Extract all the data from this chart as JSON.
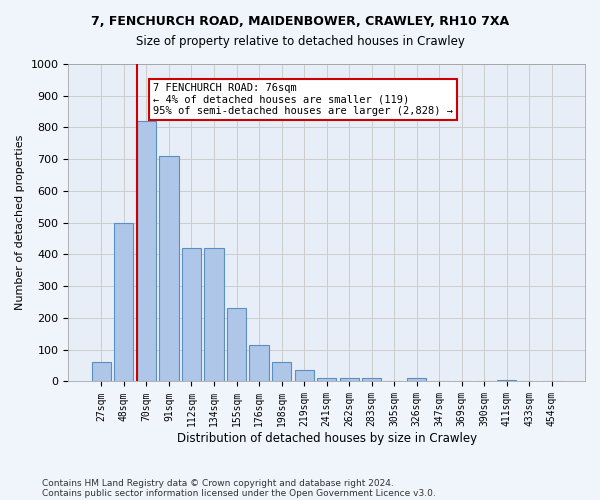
{
  "title1": "7, FENCHURCH ROAD, MAIDENBOWER, CRAWLEY, RH10 7XA",
  "title2": "Size of property relative to detached houses in Crawley",
  "xlabel": "Distribution of detached houses by size in Crawley",
  "ylabel": "Number of detached properties",
  "categories": [
    "27sqm",
    "48sqm",
    "70sqm",
    "91sqm",
    "112sqm",
    "134sqm",
    "155sqm",
    "176sqm",
    "198sqm",
    "219sqm",
    "241sqm",
    "262sqm",
    "283sqm",
    "305sqm",
    "326sqm",
    "347sqm",
    "369sqm",
    "390sqm",
    "411sqm",
    "433sqm",
    "454sqm"
  ],
  "values": [
    60,
    500,
    820,
    710,
    420,
    420,
    230,
    115,
    60,
    35,
    12,
    10,
    10,
    0,
    10,
    0,
    0,
    0,
    5,
    0,
    0
  ],
  "bar_color": "#aec6e8",
  "bar_edge_color": "#5a8fc2",
  "vline_x": 2,
  "vline_color": "#cc0000",
  "annotation_text": "7 FENCHURCH ROAD: 76sqm\n← 4% of detached houses are smaller (119)\n95% of semi-detached houses are larger (2,828) →",
  "annotation_box_color": "#ffffff",
  "annotation_box_edge": "#cc0000",
  "ylim": [
    0,
    1000
  ],
  "yticks": [
    0,
    100,
    200,
    300,
    400,
    500,
    600,
    700,
    800,
    900,
    1000
  ],
  "grid_color": "#cccccc",
  "bg_color": "#e8eef8",
  "footer1": "Contains HM Land Registry data © Crown copyright and database right 2024.",
  "footer2": "Contains public sector information licensed under the Open Government Licence v3.0."
}
